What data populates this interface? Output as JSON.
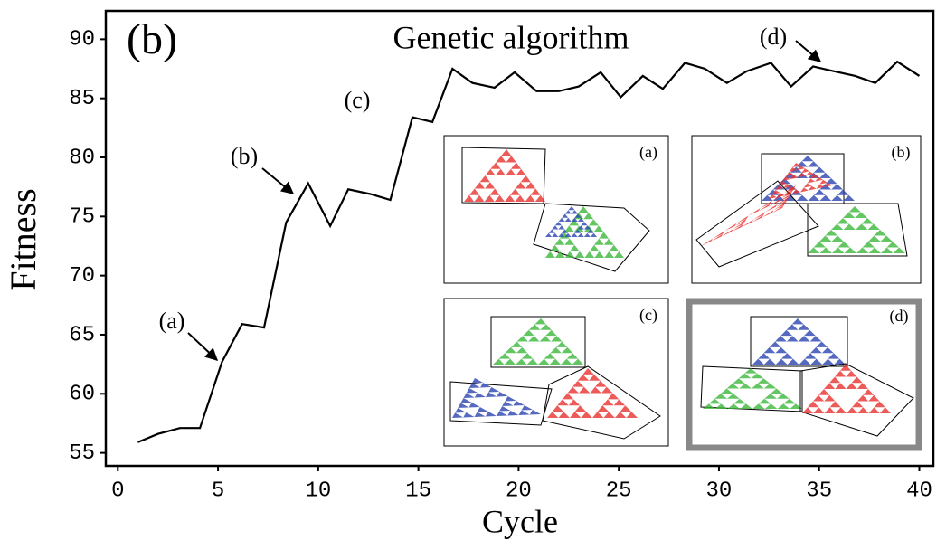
{
  "chart_data": {
    "type": "line",
    "title": "Genetic algorithm",
    "panel_label": "(b)",
    "x_label": "Cycle",
    "y_label": "Fitness",
    "x": [
      1.0,
      2.0,
      3.1,
      4.1,
      5.2,
      6.2,
      7.3,
      8.4,
      9.5,
      10.6,
      11.5,
      12.6,
      13.6,
      14.7,
      15.7,
      16.7,
      17.7,
      18.8,
      19.8,
      20.9,
      22.0,
      23.0,
      24.1,
      25.1,
      26.2,
      27.2,
      28.3,
      29.3,
      30.4,
      31.4,
      32.6,
      33.6,
      34.7,
      35.7,
      36.8,
      37.8,
      38.9,
      40.0
    ],
    "series": [
      {
        "color": "#000000",
        "values": [
          55.9,
          56.6,
          57.1,
          57.1,
          62.7,
          65.9,
          65.6,
          74.5,
          77.8,
          74.2,
          77.3,
          76.9,
          76.4,
          83.4,
          83.0,
          87.5,
          86.3,
          85.9,
          87.2,
          85.6,
          85.6,
          86.0,
          87.2,
          85.1,
          86.9,
          85.8,
          88.0,
          87.5,
          86.3,
          87.3,
          88.0,
          86.0,
          87.7,
          87.3,
          86.9,
          86.3,
          88.1,
          86.9
        ]
      }
    ],
    "xlim": [
      -0.6,
      40.7
    ],
    "ylim": [
      53.9,
      92.4
    ],
    "xticks": [
      0,
      5,
      10,
      15,
      20,
      25,
      30,
      35,
      40
    ],
    "yticks": [
      55,
      60,
      65,
      70,
      75,
      80,
      85,
      90
    ],
    "annotations": [
      "(a)",
      "(b)",
      "(c)",
      "(d)"
    ],
    "inset_labels": [
      "(a)",
      "(b)",
      "(c)",
      "(d)"
    ]
  }
}
